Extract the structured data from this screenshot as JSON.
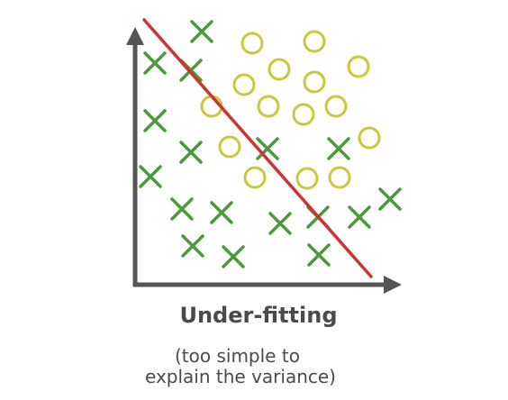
{
  "title": "Under-fitting",
  "subtitle_line1": "(too simple to",
  "subtitle_line2": "explain the variance)",
  "colors": {
    "axis": "#555555",
    "cross": "#4a9a3c",
    "circle": "#c9c83a",
    "line": "#cc3333",
    "text": "#4a4a4a"
  },
  "icons": {
    "cross": "cross-marker-icon",
    "circle": "circle-marker-icon",
    "arrow": "arrowhead-icon"
  }
}
